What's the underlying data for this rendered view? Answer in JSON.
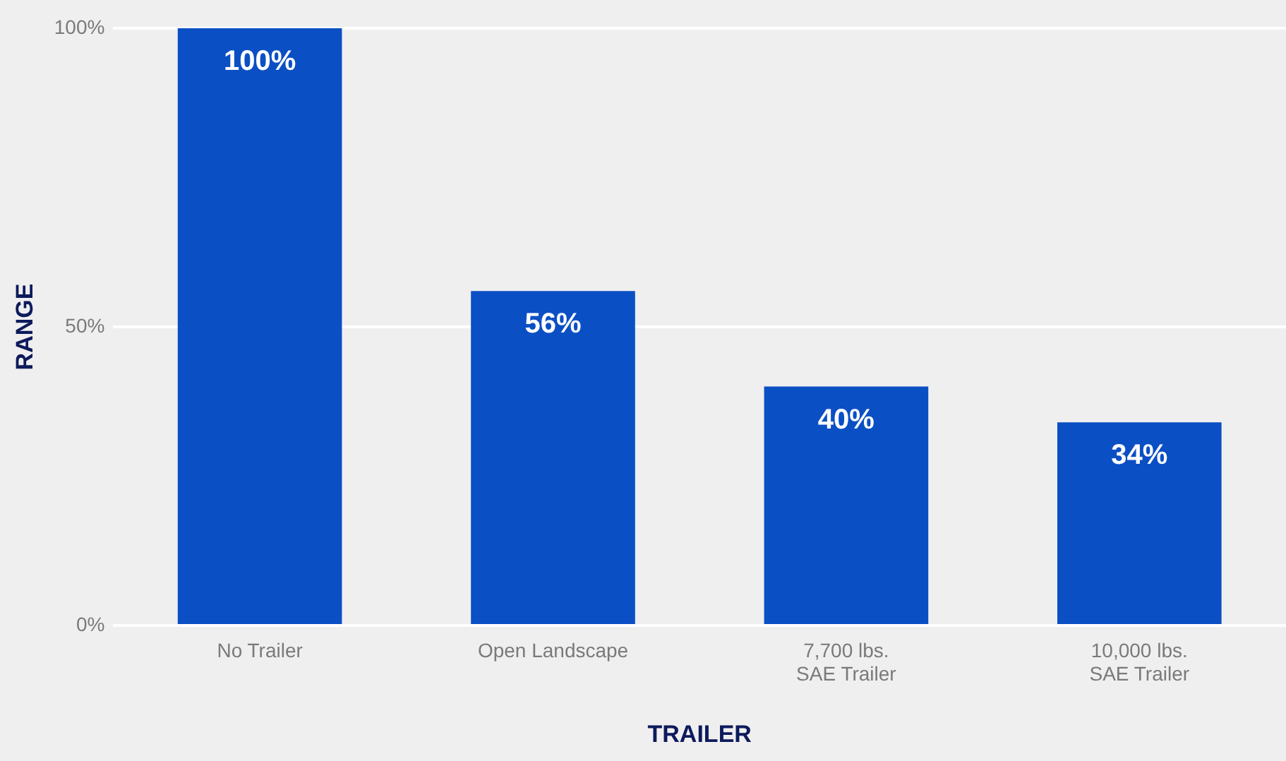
{
  "chart_data": {
    "type": "bar",
    "xlabel": "TRAILER",
    "ylabel": "RANGE",
    "categories": [
      "No Trailer",
      "Open Landscape",
      "7,700 lbs.\nSAE Trailer",
      "10,000 lbs.\nSAE Trailer"
    ],
    "values": [
      100,
      56,
      40,
      34
    ],
    "value_labels": [
      "100%",
      "56%",
      "40%",
      "34%"
    ],
    "color": "#0b4fc4",
    "ylim": [
      0,
      100
    ],
    "yticks": [
      {
        "value": 0,
        "label": "0%"
      },
      {
        "value": 50,
        "label": "50%"
      },
      {
        "value": 100,
        "label": "100%"
      }
    ],
    "grid": "y"
  }
}
